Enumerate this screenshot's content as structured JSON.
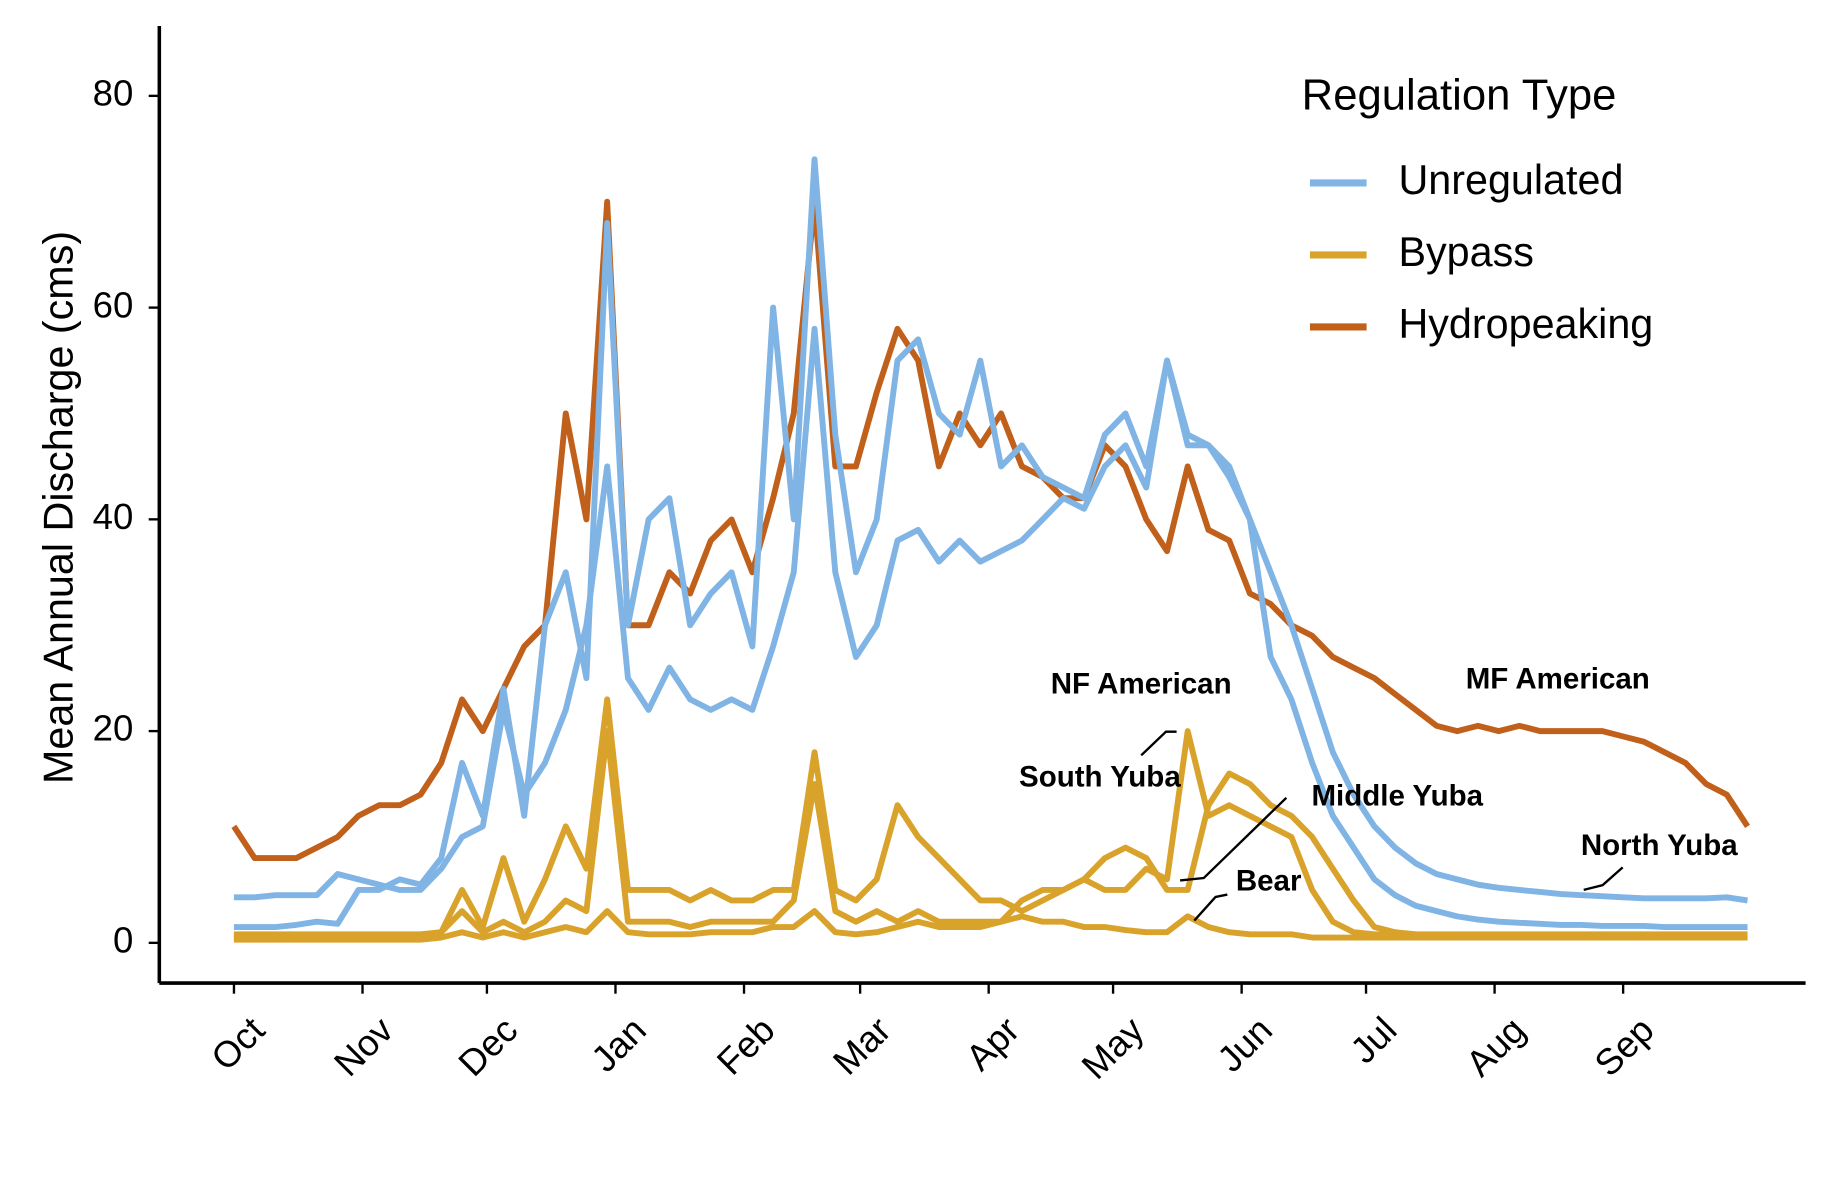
{
  "chart_data": {
    "type": "line",
    "y_label": "Mean Annual Discharge (cms)",
    "legend": {
      "title": "Regulation Type",
      "position": "top-right",
      "entries": [
        {
          "name": "Unregulated",
          "color": "#7fb4e5"
        },
        {
          "name": "Bypass",
          "color": "#d9a22a"
        },
        {
          "name": "Hydropeaking",
          "color": "#c0601a"
        }
      ]
    },
    "x": [
      0,
      5,
      10,
      15,
      20,
      25,
      30,
      35,
      40,
      45,
      50,
      55,
      60,
      65,
      70,
      75,
      80,
      85,
      90,
      95,
      100,
      105,
      110,
      115,
      120,
      125,
      130,
      135,
      140,
      145,
      150,
      155,
      160,
      165,
      170,
      175,
      180,
      185,
      190,
      195,
      200,
      205,
      210,
      215,
      220,
      225,
      230,
      235,
      240,
      245,
      250,
      255,
      260,
      265,
      270,
      275,
      280,
      285,
      290,
      295,
      300,
      305,
      310,
      315,
      320,
      325,
      330,
      335,
      340,
      345,
      350,
      355,
      360,
      365
    ],
    "xlim": [
      -18,
      379
    ],
    "xticks": [
      {
        "value": 0,
        "label": "Oct"
      },
      {
        "value": 31,
        "label": "Nov"
      },
      {
        "value": 61,
        "label": "Dec"
      },
      {
        "value": 92,
        "label": "Jan"
      },
      {
        "value": 123,
        "label": "Feb"
      },
      {
        "value": 151,
        "label": "Mar"
      },
      {
        "value": 182,
        "label": "Apr"
      },
      {
        "value": 212,
        "label": "May"
      },
      {
        "value": 243,
        "label": "Jun"
      },
      {
        "value": 273,
        "label": "Jul"
      },
      {
        "value": 304,
        "label": "Aug"
      },
      {
        "value": 335,
        "label": "Sep"
      }
    ],
    "ylim": [
      -3.8,
      86.6
    ],
    "yticks": [
      0,
      20,
      40,
      60,
      80
    ],
    "grid": false,
    "series": [
      {
        "name": "MF American",
        "color": "#c0601a",
        "values": [
          11,
          8,
          8,
          8,
          9,
          10,
          12,
          13,
          13,
          14,
          17,
          23,
          20,
          24,
          28,
          30,
          50,
          40,
          70,
          30,
          30,
          35,
          33,
          38,
          40,
          35,
          42,
          50,
          70,
          45,
          45,
          52,
          58,
          55,
          45,
          50,
          47,
          50,
          45,
          44,
          42,
          42,
          47,
          45,
          40,
          37,
          45,
          39,
          38,
          33,
          32,
          30,
          29,
          27,
          26,
          25,
          23.5,
          22,
          20.5,
          20,
          20.5,
          20,
          20.5,
          20,
          20,
          20,
          20,
          19.5,
          19,
          18,
          17,
          15,
          14,
          11
        ]
      },
      {
        "name": "NF American",
        "color": "#7fb4e5",
        "values": [
          1.5,
          1.5,
          1.5,
          1.7,
          2,
          1.8,
          5,
          5,
          6,
          5.5,
          8,
          17,
          12,
          24,
          12,
          30,
          35,
          25,
          68,
          30,
          40,
          42,
          30,
          33,
          35,
          28,
          60,
          40,
          74,
          48,
          35,
          40,
          55,
          57,
          50,
          48,
          55,
          45,
          47,
          44,
          43,
          42,
          48,
          50,
          45,
          55,
          47,
          47,
          44,
          40,
          27,
          23,
          17,
          12,
          9,
          6,
          4.5,
          3.5,
          3,
          2.5,
          2.2,
          2,
          1.9,
          1.8,
          1.7,
          1.7,
          1.6,
          1.6,
          1.6,
          1.5,
          1.5,
          1.5,
          1.5,
          1.5
        ]
      },
      {
        "name": "North Yuba",
        "color": "#7fb4e5",
        "values": [
          4.3,
          4.3,
          4.5,
          4.5,
          4.5,
          6.5,
          6,
          5.5,
          5,
          5,
          7,
          10,
          11,
          22,
          14,
          17,
          22,
          30,
          45,
          25,
          22,
          26,
          23,
          22,
          23,
          22,
          28,
          35,
          58,
          35,
          27,
          30,
          38,
          39,
          36,
          38,
          36,
          37,
          38,
          40,
          42,
          41,
          45,
          47,
          43,
          55,
          48,
          47,
          45,
          40,
          35,
          30,
          24,
          18,
          14,
          11,
          9,
          7.5,
          6.5,
          6,
          5.5,
          5.2,
          5,
          4.8,
          4.6,
          4.5,
          4.4,
          4.3,
          4.2,
          4.2,
          4.2,
          4.2,
          4.3,
          4
        ]
      },
      {
        "name": "South Yuba",
        "color": "#d9a22a",
        "values": [
          0.8,
          0.8,
          0.8,
          0.8,
          0.8,
          0.8,
          0.8,
          0.8,
          0.8,
          0.8,
          1,
          5,
          1.5,
          8,
          2,
          6,
          11,
          7,
          23,
          5,
          5,
          5,
          4,
          5,
          4,
          4,
          5,
          5,
          18,
          5,
          4,
          6,
          13,
          10,
          8,
          6,
          4,
          4,
          3,
          4,
          5,
          6,
          5,
          5,
          7,
          6,
          20,
          12,
          13,
          12,
          11,
          10,
          5,
          2,
          1,
          0.8,
          0.8,
          0.8,
          0.8,
          0.8,
          0.8,
          0.8,
          0.8,
          0.8,
          0.8,
          0.8,
          0.8,
          0.8,
          0.8,
          0.8,
          0.8,
          0.8,
          0.8,
          0.8
        ]
      },
      {
        "name": "Middle Yuba",
        "color": "#d9a22a",
        "values": [
          0.5,
          0.5,
          0.5,
          0.5,
          0.5,
          0.5,
          0.5,
          0.5,
          0.5,
          0.5,
          1,
          3,
          1,
          2,
          1,
          2,
          4,
          3,
          20,
          2,
          2,
          2,
          1.5,
          2,
          2,
          2,
          2,
          4,
          15,
          3,
          2,
          3,
          2,
          3,
          2,
          2,
          2,
          2,
          4,
          5,
          5,
          6,
          8,
          9,
          8,
          5,
          5,
          13,
          16,
          15,
          13,
          12,
          10,
          7,
          4,
          1.5,
          1,
          0.8,
          0.6,
          0.5,
          0.5,
          0.5,
          0.5,
          0.5,
          0.5,
          0.5,
          0.5,
          0.5,
          0.5,
          0.5,
          0.5,
          0.5,
          0.5,
          0.5
        ]
      },
      {
        "name": "Bear",
        "color": "#d9a22a",
        "values": [
          0.3,
          0.3,
          0.3,
          0.3,
          0.3,
          0.3,
          0.3,
          0.3,
          0.3,
          0.3,
          0.5,
          1,
          0.5,
          1,
          0.5,
          1,
          1.5,
          1,
          3,
          1,
          0.8,
          0.8,
          0.8,
          1,
          1,
          1,
          1.5,
          1.5,
          3,
          1,
          0.8,
          1,
          1.5,
          2,
          1.5,
          1.5,
          1.5,
          2,
          2.5,
          2,
          2,
          1.5,
          1.5,
          1.2,
          1,
          1,
          2.5,
          1.5,
          1,
          0.8,
          0.8,
          0.8,
          0.5,
          0.5,
          0.5,
          0.5,
          0.5,
          0.5,
          0.5,
          0.5,
          0.5,
          0.5,
          0.5,
          0.5,
          0.5,
          0.5,
          0.5,
          0.5,
          0.5,
          0.5,
          0.5,
          0.5,
          0.5,
          0.5
        ]
      }
    ]
  }
}
